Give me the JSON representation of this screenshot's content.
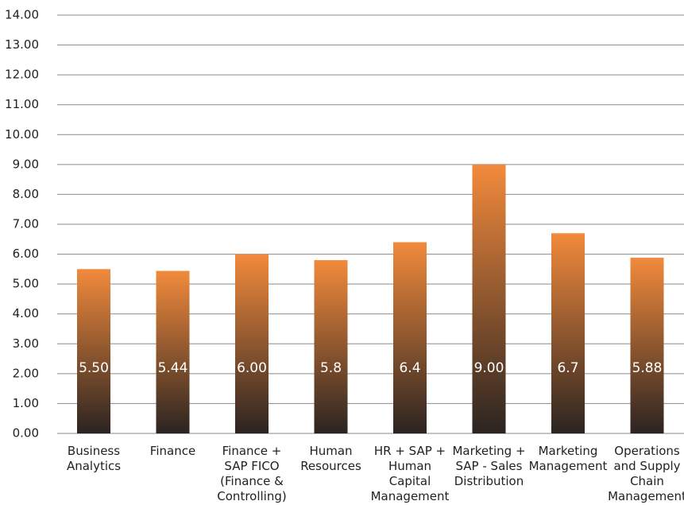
{
  "chart_data": {
    "type": "bar",
    "categories": [
      "Business Analytics",
      "Finance",
      "Finance + SAP FICO (Finance & Controlling)",
      "Human Resources",
      "HR + SAP + Human Capital Management",
      "Marketing + SAP - Sales Distribution",
      "Marketing Management",
      "Operations and Supply Chain Management"
    ],
    "values": [
      5.5,
      5.44,
      6,
      5.8,
      6.4,
      9,
      6.7,
      5.88
    ],
    "value_labels": [
      "5.50",
      "5.44",
      "6.00",
      "5.8",
      "6.4",
      "9.00",
      "6.7",
      "5.88"
    ],
    "color": [
      "#f28a3c",
      "#2b2421"
    ],
    "ylim": [
      0,
      14
    ],
    "yticks": [
      {
        "value": 0,
        "label": "0.00"
      },
      {
        "value": 1,
        "label": "1.00"
      },
      {
        "value": 2,
        "label": "2.00"
      },
      {
        "value": 3,
        "label": "3.00"
      },
      {
        "value": 4,
        "label": "4.00"
      },
      {
        "value": 5,
        "label": "5.00"
      },
      {
        "value": 6,
        "label": "6.00"
      },
      {
        "value": 7,
        "label": "7.00"
      },
      {
        "value": 8,
        "label": "8.00"
      },
      {
        "value": 9,
        "label": "9.00"
      },
      {
        "value": 10,
        "label": "10.00"
      },
      {
        "value": 11,
        "label": "11.00"
      },
      {
        "value": 12,
        "label": "12.00"
      },
      {
        "value": 13,
        "label": "13.00"
      },
      {
        "value": 14,
        "label": "14.00"
      }
    ],
    "grid": true
  }
}
